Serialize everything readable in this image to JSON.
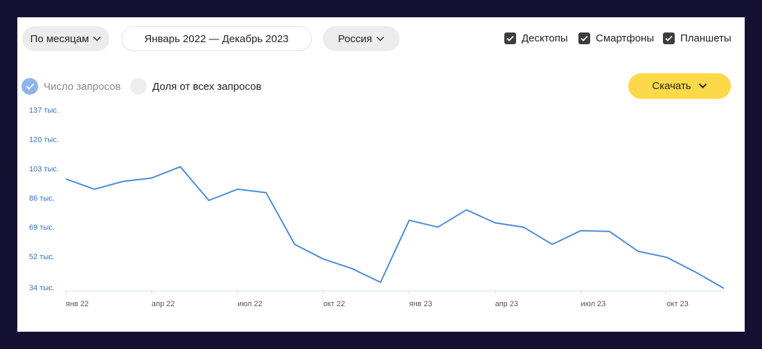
{
  "controls": {
    "period_label": "По месяцам",
    "date_range": "Январь 2022 — Декабрь 2023",
    "region": "Россия",
    "devices": [
      {
        "label": "Десктопы",
        "checked": true
      },
      {
        "label": "Смартфоны",
        "checked": true
      },
      {
        "label": "Планшеты",
        "checked": true
      }
    ],
    "metric_options": [
      {
        "label": "Число запросов",
        "selected": true
      },
      {
        "label": "Доля от всех запросов",
        "selected": false
      }
    ],
    "download_label": "Скачать"
  },
  "colors": {
    "line": "#4a8ad8",
    "tick_y": "#2f6fc2",
    "accent_yellow": "#fbd948",
    "radio_selected": "#8fb4ec"
  },
  "chart_data": {
    "type": "line",
    "x": [
      "2022-01",
      "2022-02",
      "2022-03",
      "2022-04",
      "2022-05",
      "2022-06",
      "2022-07",
      "2022-08",
      "2022-09",
      "2022-10",
      "2022-11",
      "2022-12",
      "2023-01",
      "2023-02",
      "2023-03",
      "2023-04",
      "2023-05",
      "2023-06",
      "2023-07",
      "2023-08",
      "2023-09",
      "2023-10",
      "2023-11",
      "2023-12"
    ],
    "series": [
      {
        "values": [
          97,
          91,
          95.5,
          97.5,
          104,
          84.5,
          91,
          89,
          59,
          50.5,
          45,
          37,
          73,
          69,
          79,
          71.5,
          69,
          59,
          67,
          66.5,
          55,
          51.5,
          43,
          33.5
        ]
      }
    ],
    "y_ticks": [
      {
        "value": 34,
        "label": "34 тыс."
      },
      {
        "value": 52,
        "label": "52 тыс."
      },
      {
        "value": 69,
        "label": "69 тыс."
      },
      {
        "value": 86,
        "label": "86 тыс."
      },
      {
        "value": 103,
        "label": "103 тыс."
      },
      {
        "value": 120,
        "label": "120 тыс."
      },
      {
        "value": 137,
        "label": "137 тыс."
      }
    ],
    "x_ticks": [
      {
        "index": 0,
        "label": "янв 22"
      },
      {
        "index": 3,
        "label": "апр 22"
      },
      {
        "index": 6,
        "label": "июл 22"
      },
      {
        "index": 9,
        "label": "окт 22"
      },
      {
        "index": 12,
        "label": "янв 23"
      },
      {
        "index": 15,
        "label": "апр 23"
      },
      {
        "index": 18,
        "label": "июл 23"
      },
      {
        "index": 21,
        "label": "окт 23"
      }
    ],
    "ylim": [
      34,
      137
    ],
    "grid": false
  }
}
